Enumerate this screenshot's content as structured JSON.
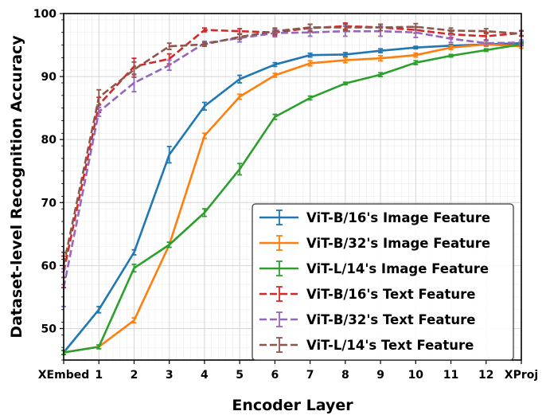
{
  "chart_data": {
    "type": "line",
    "xlabel": "Encoder Layer",
    "ylabel": "Dataset-level Recognition Accuracy",
    "categories": [
      "XEmbed",
      "1",
      "2",
      "3",
      "4",
      "5",
      "6",
      "7",
      "8",
      "9",
      "10",
      "11",
      "12",
      "XProj"
    ],
    "ylim": [
      45,
      100
    ],
    "yticks": [
      50,
      60,
      70,
      80,
      90,
      100
    ],
    "grid": true,
    "legend_position": "bottom-right",
    "series": [
      {
        "name": "ViT-B/16's Image Feature",
        "color": "#1f77b4",
        "dash": "solid",
        "values": [
          46.2,
          53.0,
          62.1,
          77.6,
          85.3,
          89.6,
          91.9,
          93.4,
          93.5,
          94.1,
          94.6,
          94.9,
          95.1,
          95.3
        ],
        "errors": [
          0.3,
          0.5,
          0.4,
          1.3,
          0.6,
          0.6,
          0.3,
          0.3,
          0.3,
          0.3,
          0.2,
          0.2,
          0.2,
          0.2
        ]
      },
      {
        "name": "ViT-B/32's Image Feature",
        "color": "#ff7f0e",
        "dash": "solid",
        "values": [
          46.2,
          47.1,
          51.3,
          63.3,
          80.6,
          86.8,
          90.2,
          92.1,
          92.6,
          92.9,
          93.4,
          94.6,
          95.1,
          94.8
        ],
        "errors": [
          0.3,
          0.3,
          0.4,
          0.4,
          0.4,
          0.4,
          0.3,
          0.4,
          0.4,
          0.4,
          0.3,
          0.3,
          0.3,
          0.3
        ]
      },
      {
        "name": "ViT-L/14's Image Feature",
        "color": "#2ca02c",
        "dash": "solid",
        "values": [
          46.2,
          47.1,
          59.6,
          63.3,
          68.4,
          75.3,
          83.6,
          86.6,
          88.9,
          90.3,
          92.2,
          93.3,
          94.2,
          95.1
        ],
        "errors": [
          0.3,
          0.3,
          0.6,
          0.4,
          0.6,
          0.9,
          0.4,
          0.3,
          0.2,
          0.3,
          0.3,
          0.2,
          0.2,
          0.2
        ]
      },
      {
        "name": "ViT-B/16's Text Feature",
        "color": "#d62728",
        "dash": "dashed",
        "values": [
          59.0,
          85.5,
          91.6,
          92.8,
          97.4,
          97.2,
          97.0,
          97.7,
          98.0,
          97.8,
          97.4,
          96.7,
          96.4,
          96.9
        ],
        "errors": [
          2.5,
          1.2,
          1.3,
          0.8,
          0.3,
          0.4,
          0.5,
          0.6,
          0.5,
          0.5,
          0.5,
          0.5,
          0.6,
          0.4
        ]
      },
      {
        "name": "ViT-B/32's Text Feature",
        "color": "#9467bd",
        "dash": "dashed",
        "values": [
          56.5,
          84.4,
          89.0,
          91.8,
          95.3,
          96.1,
          96.9,
          97.0,
          97.2,
          97.2,
          97.0,
          96.0,
          95.3,
          95.4
        ],
        "errors": [
          3.0,
          0.7,
          1.4,
          0.8,
          0.3,
          0.6,
          0.6,
          0.6,
          0.8,
          0.8,
          0.8,
          0.6,
          0.4,
          0.4
        ]
      },
      {
        "name": "ViT-L/14's Text Feature",
        "color": "#8c564b",
        "dash": "dashed",
        "values": [
          60.1,
          86.7,
          91.1,
          94.8,
          95.1,
          96.3,
          97.2,
          97.8,
          97.8,
          97.8,
          97.9,
          97.3,
          97.2,
          96.8
        ],
        "errors": [
          2.0,
          1.2,
          1.2,
          0.5,
          0.3,
          0.4,
          0.5,
          0.5,
          0.5,
          0.5,
          0.5,
          0.4,
          0.4,
          0.4
        ]
      }
    ]
  }
}
